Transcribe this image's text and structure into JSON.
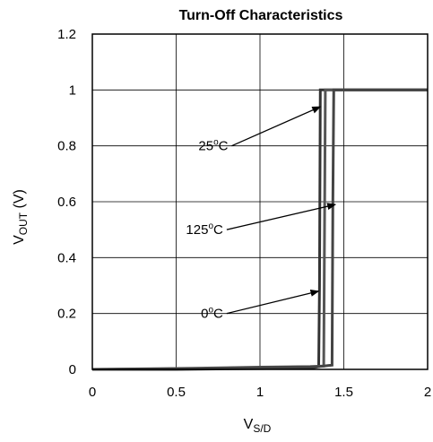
{
  "chart_data": {
    "type": "line",
    "title": "Turn-Off Characteristics",
    "xlabel_main": "V",
    "xlabel_sub": "S/D",
    "ylabel_main": "V",
    "ylabel_sub": "OUT",
    "ylabel_unit": " (V)",
    "xlim": [
      0,
      2
    ],
    "ylim": [
      0,
      1.2
    ],
    "xticks": [
      0,
      0.5,
      1,
      1.5,
      2
    ],
    "xtick_labels": [
      "0",
      "0.5",
      "1",
      "1.5",
      "2"
    ],
    "yticks": [
      0,
      0.2,
      0.4,
      0.6,
      0.8,
      1,
      1.2
    ],
    "ytick_labels": [
      "0",
      "0.2",
      "0.4",
      "0.6",
      "0.8",
      "1",
      "1.2"
    ],
    "grid": true,
    "series": [
      {
        "key": "t25",
        "color": "#333333",
        "points": [
          [
            0,
            0
          ],
          [
            0.5,
            0
          ],
          [
            0.8,
            0.002
          ],
          [
            1.2,
            0.004
          ],
          [
            1.32,
            0.006
          ],
          [
            1.35,
            0.01
          ],
          [
            1.355,
            0.3
          ],
          [
            1.36,
            1
          ],
          [
            2,
            1
          ]
        ]
      },
      {
        "key": "t125",
        "color": "#555555",
        "points": [
          [
            0,
            0
          ],
          [
            0.6,
            0.004
          ],
          [
            1.0,
            0.008
          ],
          [
            1.3,
            0.01
          ],
          [
            1.38,
            0.012
          ],
          [
            1.385,
            0.5
          ],
          [
            1.39,
            1
          ],
          [
            2,
            1
          ]
        ]
      },
      {
        "key": "t0",
        "color": "#444444",
        "points": [
          [
            0,
            0
          ],
          [
            0.5,
            0.002
          ],
          [
            1.0,
            0.006
          ],
          [
            1.35,
            0.01
          ],
          [
            1.43,
            0.015
          ],
          [
            1.435,
            0.6
          ],
          [
            1.44,
            1
          ],
          [
            2,
            1
          ]
        ]
      }
    ],
    "annotations": [
      {
        "key": "a25",
        "temp": "25",
        "unit": "C",
        "text_x": 0.81,
        "text_y": 0.8,
        "arrow_to": [
          1.36,
          0.94
        ]
      },
      {
        "key": "a125",
        "temp": "125",
        "unit": "C",
        "text_x": 0.78,
        "text_y": 0.5,
        "arrow_to": [
          1.45,
          0.59
        ]
      },
      {
        "key": "a0",
        "temp": "0",
        "unit": "C",
        "text_x": 0.78,
        "text_y": 0.2,
        "arrow_to": [
          1.35,
          0.28
        ]
      }
    ],
    "degree_symbol": "o"
  }
}
